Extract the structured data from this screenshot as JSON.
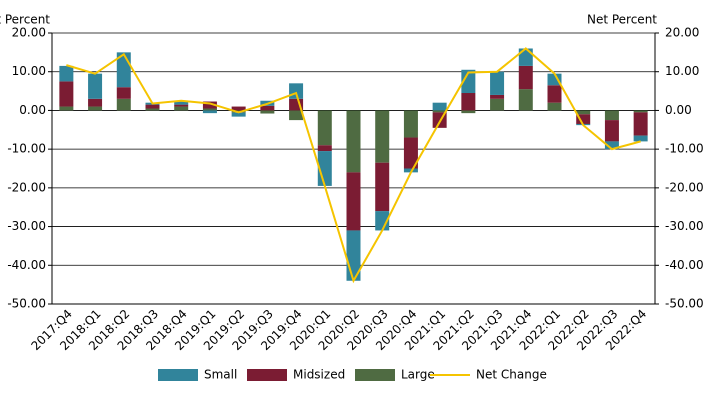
{
  "chart_data": {
    "type": "stacked-bar-line",
    "y_label": "Net Percent",
    "y2_label": "Net Percent",
    "categories": [
      "2017:Q4",
      "2018:Q1",
      "2018:Q2",
      "2018:Q3",
      "2018:Q4",
      "2019:Q1",
      "2019:Q2",
      "2019:Q3",
      "2019:Q4",
      "2020:Q1",
      "2020:Q2",
      "2020:Q3",
      "2020:Q4",
      "2021:Q1",
      "2021:Q2",
      "2021:Q3",
      "2021:Q4",
      "2022:Q1",
      "2022:Q2",
      "2022:Q3",
      "2022:Q4"
    ],
    "series": [
      {
        "name": "Small",
        "color": "#31849b",
        "kind": "bar",
        "values": [
          4,
          6.5,
          9,
          0.5,
          1,
          -0.7,
          -1,
          1.3,
          4,
          -9,
          -13,
          -5,
          -1,
          2,
          6,
          6,
          4.5,
          3,
          -0.3,
          -2,
          -1.5
        ]
      },
      {
        "name": "Midsized",
        "color": "#7b1c33",
        "kind": "bar",
        "values": [
          6.5,
          2,
          3,
          1,
          0.5,
          1.8,
          1,
          1.2,
          3,
          -1.5,
          -15,
          -12.5,
          -8,
          -4,
          4.5,
          1,
          6,
          4.5,
          -2.5,
          -5.5,
          -6
        ]
      },
      {
        "name": "Large",
        "color": "#4f6b42",
        "kind": "bar",
        "values": [
          1,
          1,
          3,
          0.5,
          1,
          0.5,
          -0.6,
          -0.8,
          -2.5,
          -9,
          -16,
          -13.5,
          -7,
          -0.5,
          -0.7,
          3,
          5.5,
          2,
          -1,
          -2.5,
          -0.5
        ]
      },
      {
        "name": "Net Change",
        "color": "#f5c400",
        "kind": "line",
        "values": [
          11.7,
          9.5,
          14.5,
          1.8,
          2.5,
          1.8,
          -0.5,
          1.7,
          4.5,
          -19.5,
          -44,
          -31,
          -16,
          -3,
          9.8,
          10,
          16,
          9.5,
          -3.8,
          -10,
          -8
        ]
      }
    ],
    "ylim": [
      -50,
      20
    ],
    "yticks": [
      {
        "value": -50,
        "label": "-50.00"
      },
      {
        "value": -40,
        "label": "-40.00"
      },
      {
        "value": -30,
        "label": "-30.00"
      },
      {
        "value": -20,
        "label": "-20.00"
      },
      {
        "value": -10,
        "label": "-10.00"
      },
      {
        "value": 0,
        "label": "0.00"
      },
      {
        "value": 10,
        "label": "10.00"
      },
      {
        "value": 20,
        "label": "20.00"
      }
    ],
    "y2lim": [
      -50,
      20
    ],
    "y2ticks": [
      {
        "value": -50,
        "label": "-50.00"
      },
      {
        "value": -40,
        "label": "-40.00"
      },
      {
        "value": -30,
        "label": "-30.00"
      },
      {
        "value": -20,
        "label": "-20.00"
      },
      {
        "value": -10,
        "label": "-10.00"
      },
      {
        "value": 0,
        "label": "0.00"
      },
      {
        "value": 10,
        "label": "10.00"
      },
      {
        "value": 20,
        "label": "20.00"
      }
    ],
    "grid": true
  }
}
